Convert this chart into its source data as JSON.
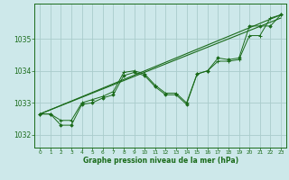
{
  "bg_color": "#cde8ea",
  "grid_color": "#aacccc",
  "line_color": "#1a6b1a",
  "marker_color": "#1a6b1a",
  "xlabel": "Graphe pression niveau de la mer (hPa)",
  "xlim": [
    -0.5,
    23.5
  ],
  "ylim": [
    1031.6,
    1036.1
  ],
  "yticks": [
    1032,
    1033,
    1034,
    1035
  ],
  "xticks": [
    0,
    1,
    2,
    3,
    4,
    5,
    6,
    7,
    8,
    9,
    10,
    11,
    12,
    13,
    14,
    15,
    16,
    17,
    18,
    19,
    20,
    21,
    22,
    23
  ],
  "series_main_1": {
    "x": [
      0,
      1,
      2,
      3,
      4,
      5,
      6,
      7,
      8,
      9,
      10,
      11,
      12,
      13,
      14,
      15,
      16,
      17,
      18,
      19,
      20,
      21,
      22,
      23
    ],
    "y": [
      1032.65,
      1032.65,
      1032.45,
      1032.45,
      1033.0,
      1033.1,
      1033.2,
      1033.35,
      1033.95,
      1034.0,
      1033.9,
      1033.55,
      1033.3,
      1033.3,
      1033.0,
      1033.9,
      1034.0,
      1034.3,
      1034.3,
      1034.35,
      1035.1,
      1035.1,
      1035.65,
      1035.75
    ]
  },
  "series_main_2": {
    "x": [
      0,
      1,
      2,
      3,
      4,
      5,
      6,
      7,
      8,
      9,
      10,
      11,
      12,
      13,
      14,
      15,
      16,
      17,
      18,
      19,
      20,
      21,
      22,
      23
    ],
    "y": [
      1032.65,
      1032.65,
      1032.3,
      1032.3,
      1032.95,
      1033.0,
      1033.15,
      1033.25,
      1033.85,
      1033.95,
      1033.85,
      1033.5,
      1033.25,
      1033.25,
      1032.95,
      1033.9,
      1034.0,
      1034.4,
      1034.35,
      1034.4,
      1035.4,
      1035.4,
      1035.4,
      1035.75
    ]
  },
  "trend_1": {
    "x": [
      0,
      23
    ],
    "y": [
      1032.65,
      1035.75
    ]
  },
  "trend_2": {
    "x": [
      0,
      23
    ],
    "y": [
      1032.65,
      1035.65
    ]
  }
}
